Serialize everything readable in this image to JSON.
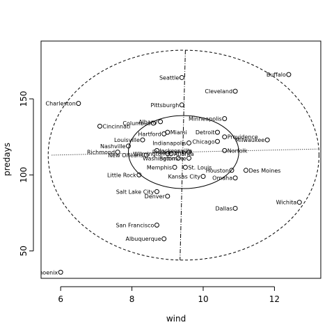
{
  "chart_data": {
    "type": "scatter",
    "xlabel": "wind",
    "ylabel": "predays",
    "xlim": [
      5.45,
      13.3
    ],
    "ylim": [
      32,
      188
    ],
    "x_ticks": [
      6,
      8,
      10,
      12
    ],
    "y_ticks": [
      50,
      100,
      150
    ],
    "grid": false,
    "points": [
      {
        "label": "Buffalo",
        "x": 12.4,
        "y": 166,
        "label_side": "left"
      },
      {
        "label": "Seattle",
        "x": 9.4,
        "y": 164,
        "label_side": "left"
      },
      {
        "label": "Cleveland",
        "x": 10.9,
        "y": 155,
        "label_side": "left"
      },
      {
        "label": "Charleston",
        "x": 6.5,
        "y": 147,
        "label_side": "left"
      },
      {
        "label": "Pittsburgh",
        "x": 9.4,
        "y": 146,
        "label_side": "left"
      },
      {
        "label": "Minneapolis",
        "x": 10.6,
        "y": 137,
        "label_side": "left"
      },
      {
        "label": "Albany",
        "x": 8.8,
        "y": 135,
        "label_side": "left"
      },
      {
        "label": "Columbus",
        "x": 8.6,
        "y": 134,
        "label_side": "left"
      },
      {
        "label": "Cincinnati",
        "x": 7.1,
        "y": 132,
        "label_side": "right"
      },
      {
        "label": "Detroit",
        "x": 10.4,
        "y": 128,
        "label_side": "left"
      },
      {
        "label": "Miami",
        "x": 9.0,
        "y": 128,
        "label_side": "right"
      },
      {
        "label": "Hartford",
        "x": 8.9,
        "y": 127,
        "label_side": "left"
      },
      {
        "label": "Providence",
        "x": 10.6,
        "y": 125,
        "label_side": "right"
      },
      {
        "label": "Louisville",
        "x": 8.3,
        "y": 123,
        "label_side": "left"
      },
      {
        "label": "Milwaukee",
        "x": 11.8,
        "y": 123,
        "label_side": "left"
      },
      {
        "label": "Chicago",
        "x": 10.4,
        "y": 122,
        "label_side": "left"
      },
      {
        "label": "Indianapolis",
        "x": 9.6,
        "y": 121,
        "label_side": "left"
      },
      {
        "label": "Nashville",
        "x": 7.9,
        "y": 119,
        "label_side": "left"
      },
      {
        "label": "Norfolk",
        "x": 10.6,
        "y": 116,
        "label_side": "right"
      },
      {
        "label": "Jacksonville",
        "x": 8.7,
        "y": 116,
        "label_side": "right"
      },
      {
        "label": "Richmond",
        "x": 7.6,
        "y": 115,
        "label_side": "left"
      },
      {
        "label": "Philadelphia",
        "x": 9.6,
        "y": 115,
        "label_side": "left"
      },
      {
        "label": "Wilmington",
        "x": 9.0,
        "y": 114,
        "label_side": "left"
      },
      {
        "label": "Atlanta",
        "x": 9.1,
        "y": 114,
        "label_side": "right"
      },
      {
        "label": "New Orleans",
        "x": 8.4,
        "y": 113,
        "label_side": "left"
      },
      {
        "label": "Washington",
        "x": 9.3,
        "y": 111,
        "label_side": "left"
      },
      {
        "label": "Baltimore",
        "x": 9.6,
        "y": 111,
        "label_side": "left"
      },
      {
        "label": "Memphis",
        "x": 9.2,
        "y": 105,
        "label_side": "left"
      },
      {
        "label": "St. Louis",
        "x": 9.5,
        "y": 105,
        "label_side": "right"
      },
      {
        "label": "Des Moines",
        "x": 11.2,
        "y": 103,
        "label_side": "right"
      },
      {
        "label": "Houston",
        "x": 10.8,
        "y": 103,
        "label_side": "left"
      },
      {
        "label": "Little Rock",
        "x": 8.2,
        "y": 100,
        "label_side": "left"
      },
      {
        "label": "Kansas City",
        "x": 10.0,
        "y": 99,
        "label_side": "left"
      },
      {
        "label": "Omaha",
        "x": 10.9,
        "y": 98,
        "label_side": "left"
      },
      {
        "label": "Salt Lake City",
        "x": 8.7,
        "y": 89,
        "label_side": "left"
      },
      {
        "label": "Denver",
        "x": 9.0,
        "y": 86,
        "label_side": "left"
      },
      {
        "label": "Wichita",
        "x": 12.7,
        "y": 82,
        "label_side": "left"
      },
      {
        "label": "Dallas",
        "x": 10.9,
        "y": 78,
        "label_side": "left"
      },
      {
        "label": "San Francisco",
        "x": 8.7,
        "y": 67,
        "label_side": "left"
      },
      {
        "label": "Albuquerque",
        "x": 8.9,
        "y": 58,
        "label_side": "left"
      },
      {
        "label": "Phoenix",
        "x": 6.0,
        "y": 36,
        "label_side": "left"
      }
    ],
    "inner_ellipse": {
      "cx": 9.45,
      "cy": 115,
      "rx": 1.55,
      "ry": 24
    },
    "outer_ellipse": {
      "cx": 9.45,
      "cy": 113,
      "rx": 3.8,
      "ry": 69
    },
    "axis_line_vertical": {
      "x1": 9.5,
      "y1": 182,
      "x2": 9.35,
      "y2": 44
    },
    "axis_line_horizontal": {
      "x1": 5.75,
      "y1": 113,
      "x2": 13.2,
      "y2": 117
    }
  }
}
